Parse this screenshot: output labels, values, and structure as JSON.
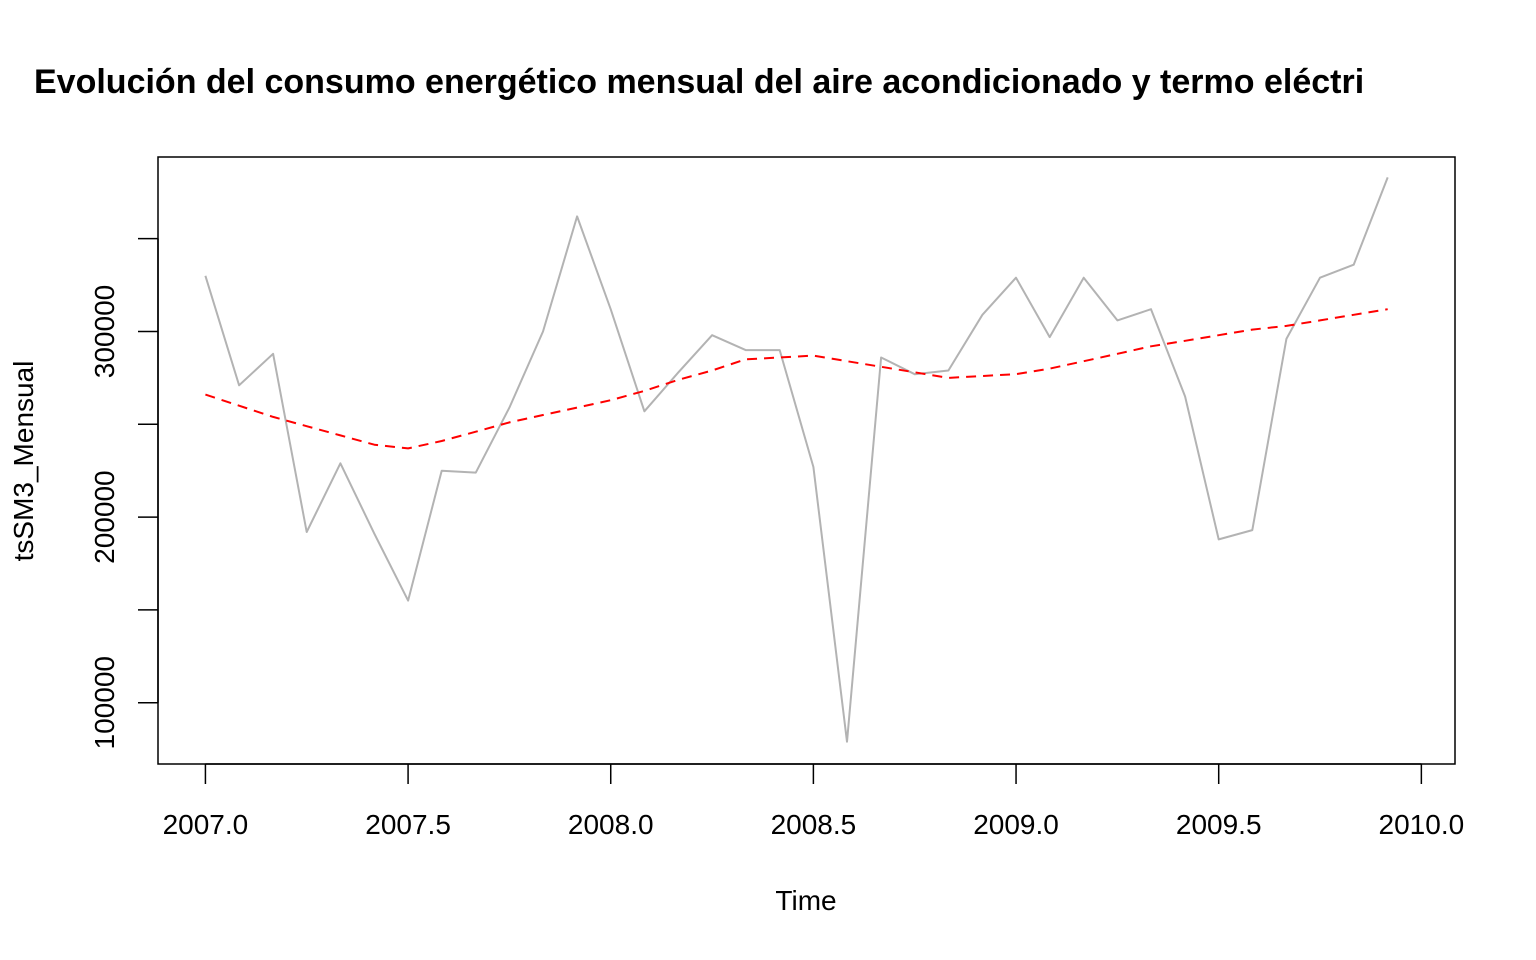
{
  "chart_data": {
    "type": "line",
    "title": "Evolución del consumo energético mensual del aire acondicionado y termo eléctri",
    "xlabel": "Time",
    "ylabel": "tsSM3_Mensual",
    "xlim": [
      2006.883,
      2010.083
    ],
    "ylim": [
      67000,
      394000
    ],
    "x_ticks": [
      2007.0,
      2007.5,
      2008.0,
      2008.5,
      2009.0,
      2009.5,
      2010.0
    ],
    "x_tick_labels": [
      "2007.0",
      "2007.5",
      "2008.0",
      "2008.5",
      "2009.0",
      "2009.5",
      "2010.0"
    ],
    "y_ticks": [
      100000,
      150000,
      200000,
      250000,
      300000,
      350000
    ],
    "y_tick_labels": [
      "100000",
      "",
      "200000",
      "",
      "300000",
      ""
    ],
    "grid": false,
    "legend": "none",
    "series": [
      {
        "color": "#b3b3b3",
        "dash": "solid",
        "x": [
          2007.0,
          2007.083,
          2007.167,
          2007.25,
          2007.333,
          2007.417,
          2007.5,
          2007.583,
          2007.667,
          2007.75,
          2007.833,
          2007.917,
          2008.0,
          2008.083,
          2008.167,
          2008.25,
          2008.333,
          2008.417,
          2008.5,
          2008.583,
          2008.667,
          2008.75,
          2008.833,
          2008.917,
          2009.0,
          2009.083,
          2009.167,
          2009.25,
          2009.333,
          2009.417,
          2009.5,
          2009.583,
          2009.667,
          2009.75,
          2009.833,
          2009.917
        ],
        "values": [
          330000,
          271000,
          288000,
          192000,
          229000,
          191000,
          155000,
          225000,
          224000,
          259000,
          300000,
          362000,
          312000,
          257000,
          278000,
          298000,
          290000,
          290000,
          227000,
          79000,
          286000,
          277000,
          279000,
          309000,
          329000,
          297000,
          329000,
          306000,
          312000,
          265000,
          188000,
          193000,
          296000,
          329000,
          336000,
          383000
        ]
      },
      {
        "color": "#ff0000",
        "dash": "dashed",
        "x": [
          2007.0,
          2007.083,
          2007.167,
          2007.25,
          2007.333,
          2007.417,
          2007.5,
          2007.583,
          2007.667,
          2007.75,
          2007.833,
          2007.917,
          2008.0,
          2008.083,
          2008.167,
          2008.25,
          2008.333,
          2008.417,
          2008.5,
          2008.583,
          2008.667,
          2008.75,
          2008.833,
          2008.917,
          2009.0,
          2009.083,
          2009.167,
          2009.25,
          2009.333,
          2009.417,
          2009.5,
          2009.583,
          2009.667,
          2009.75,
          2009.833,
          2009.917
        ],
        "values": [
          266000,
          260000,
          254000,
          249000,
          244000,
          239000,
          237000,
          241000,
          246000,
          251000,
          255000,
          259000,
          263000,
          268000,
          274000,
          279000,
          285000,
          286000,
          287000,
          284000,
          281000,
          278000,
          275000,
          276000,
          277000,
          280000,
          284000,
          288000,
          292000,
          295000,
          298000,
          301000,
          303000,
          306000,
          309000,
          312000
        ]
      }
    ]
  }
}
